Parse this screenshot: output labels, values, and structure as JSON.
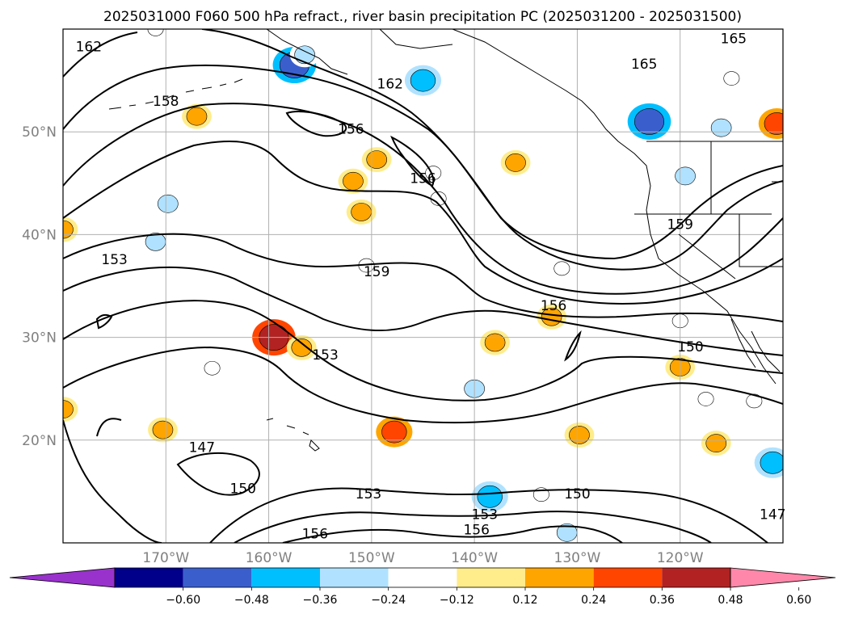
{
  "chart_data": {
    "type": "contour map",
    "title": "2025031000 F060 500 hPa refract., river basin precipitation PC (2025031200 - 2025031500)",
    "x_ticks": [
      "170°W",
      "160°W",
      "150°W",
      "140°W",
      "130°W",
      "120°W"
    ],
    "y_ticks": [
      "50°N",
      "40°N",
      "30°N",
      "20°N"
    ],
    "x_tick_values": [
      -170,
      -160,
      -150,
      -140,
      -130,
      -120
    ],
    "y_tick_values": [
      50,
      40,
      30,
      20
    ],
    "xlim": [
      -180,
      -110
    ],
    "ylim": [
      10,
      60
    ],
    "grid": true,
    "contour_labels": [
      {
        "text": "162",
        "lon": -177.5,
        "lat": 58.3
      },
      {
        "text": "162",
        "lon": -148.2,
        "lat": 54.7
      },
      {
        "text": "158",
        "lon": -170.0,
        "lat": 53.0
      },
      {
        "text": "156",
        "lon": -152.0,
        "lat": 50.3
      },
      {
        "text": "156",
        "lon": -145.0,
        "lat": 45.5
      },
      {
        "text": "165",
        "lon": -123.5,
        "lat": 56.6
      },
      {
        "text": "165",
        "lon": -114.8,
        "lat": 59.1
      },
      {
        "text": "159",
        "lon": -120.0,
        "lat": 41.0
      },
      {
        "text": "159",
        "lon": -149.5,
        "lat": 36.4
      },
      {
        "text": "156",
        "lon": -132.3,
        "lat": 33.1
      },
      {
        "text": "153",
        "lon": -175.0,
        "lat": 37.6
      },
      {
        "text": "153",
        "lon": -154.5,
        "lat": 28.3
      },
      {
        "text": "150",
        "lon": -119.0,
        "lat": 29.1
      },
      {
        "text": "150",
        "lon": -130.0,
        "lat": 14.8
      },
      {
        "text": "150",
        "lon": -162.5,
        "lat": 15.3
      },
      {
        "text": "153",
        "lon": -150.3,
        "lat": 14.8
      },
      {
        "text": "153",
        "lon": -139.0,
        "lat": 12.8
      },
      {
        "text": "156",
        "lon": -139.8,
        "lat": 11.3
      },
      {
        "text": "156",
        "lon": -155.5,
        "lat": 10.9
      },
      {
        "text": "147",
        "lon": -166.5,
        "lat": 19.3
      },
      {
        "text": "147",
        "lon": -111.0,
        "lat": 12.8
      }
    ],
    "colorbar": {
      "ticks": [
        "−0.60",
        "−0.48",
        "−0.36",
        "−0.24",
        "−0.12",
        "0.12",
        "0.24",
        "0.36",
        "0.48",
        "0.60"
      ],
      "colors": [
        "#9932cc",
        "#00008b",
        "#3a5fcd",
        "#00bfff",
        "#b0e2ff",
        "#ffffff",
        "#ffec8b",
        "#ffa500",
        "#ff4500",
        "#b22222",
        "#ff88aa"
      ]
    },
    "anomaly_areas": [
      {
        "lon": -167.0,
        "lat": 51.5,
        "value": 0.24
      },
      {
        "lon": -180.0,
        "lat": 40.5,
        "value": 0.24
      },
      {
        "lon": -180.0,
        "lat": 23.0,
        "value": 0.24
      },
      {
        "lon": -170.3,
        "lat": 21.0,
        "value": 0.24
      },
      {
        "lon": -159.5,
        "lat": 30.0,
        "value": 0.48
      },
      {
        "lon": -156.8,
        "lat": 29.0,
        "value": 0.24
      },
      {
        "lon": -147.8,
        "lat": 20.8,
        "value": 0.36
      },
      {
        "lon": -129.8,
        "lat": 20.5,
        "value": 0.24
      },
      {
        "lon": -132.5,
        "lat": 32.0,
        "value": 0.24
      },
      {
        "lon": -138.0,
        "lat": 29.5,
        "value": 0.24
      },
      {
        "lon": -116.5,
        "lat": 19.7,
        "value": 0.24
      },
      {
        "lon": -110.6,
        "lat": 50.8,
        "value": 0.36
      },
      {
        "lon": -136.0,
        "lat": 47.0,
        "value": 0.24
      },
      {
        "lon": -149.5,
        "lat": 47.3,
        "value": 0.24
      },
      {
        "lon": -151.8,
        "lat": 45.2,
        "value": 0.24
      },
      {
        "lon": -151.0,
        "lat": 42.2,
        "value": 0.24
      },
      {
        "lon": -120.0,
        "lat": 27.1,
        "value": 0.24
      },
      {
        "lon": -157.5,
        "lat": 56.5,
        "value": -0.48
      },
      {
        "lon": -156.5,
        "lat": 57.5,
        "value": -0.24
      },
      {
        "lon": -145.0,
        "lat": 55.0,
        "value": -0.36
      },
      {
        "lon": -123.0,
        "lat": 51.0,
        "value": -0.48
      },
      {
        "lon": -116.0,
        "lat": 50.4,
        "value": -0.24
      },
      {
        "lon": -115.0,
        "lat": 55.2,
        "value": -0.12
      },
      {
        "lon": -119.5,
        "lat": 45.7,
        "value": -0.24
      },
      {
        "lon": -169.8,
        "lat": 43.0,
        "value": -0.24
      },
      {
        "lon": -171.0,
        "lat": 39.3,
        "value": -0.24
      },
      {
        "lon": -165.5,
        "lat": 27.0,
        "value": -0.12
      },
      {
        "lon": -140.0,
        "lat": 25.0,
        "value": -0.24
      },
      {
        "lon": -138.5,
        "lat": 14.5,
        "value": -0.36
      },
      {
        "lon": -133.5,
        "lat": 14.7,
        "value": -0.12
      },
      {
        "lon": -131.0,
        "lat": 11.0,
        "value": -0.24
      },
      {
        "lon": -120.0,
        "lat": 31.6,
        "value": -0.12
      },
      {
        "lon": -112.8,
        "lat": 23.8,
        "value": -0.12
      },
      {
        "lon": -117.5,
        "lat": 24.0,
        "value": -0.12
      },
      {
        "lon": -111.0,
        "lat": 17.8,
        "value": -0.36
      },
      {
        "lon": -144.0,
        "lat": 46.0,
        "value": -0.12
      },
      {
        "lon": -131.5,
        "lat": 36.7,
        "value": -0.12
      },
      {
        "lon": -143.5,
        "lat": 43.5,
        "value": -0.12
      },
      {
        "lon": -171.0,
        "lat": 60.0,
        "value": -0.12
      },
      {
        "lon": -150.5,
        "lat": 37.0,
        "value": -0.12
      }
    ]
  }
}
